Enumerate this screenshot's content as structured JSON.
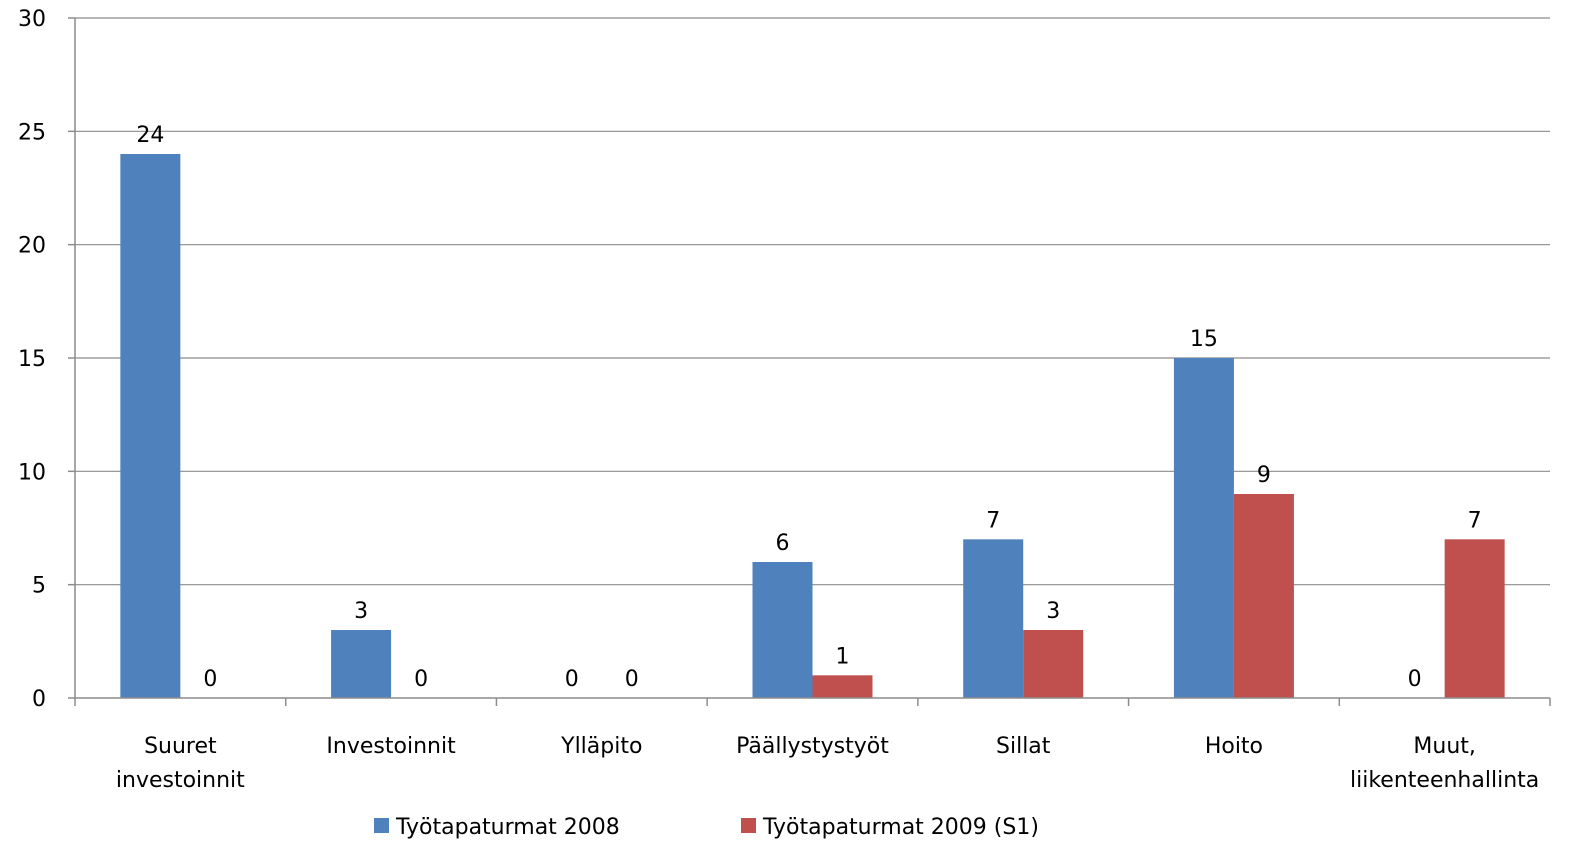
{
  "chart_data": {
    "type": "bar",
    "categories": [
      [
        "Suuret",
        "investoinnit"
      ],
      [
        "Investoinnit"
      ],
      [
        "Ylläpito"
      ],
      [
        "Päällystystyöt"
      ],
      [
        "Sillat"
      ],
      [
        "Hoito"
      ],
      [
        "Muut,",
        "liikenteenhallinta"
      ]
    ],
    "series": [
      {
        "name": "Työtapaturmat 2008",
        "color": "#4f81bd",
        "values": [
          24,
          3,
          0,
          6,
          7,
          15,
          0
        ]
      },
      {
        "name": "Työtapaturmat 2009 (S1)",
        "color": "#c0504d",
        "values": [
          0,
          0,
          0,
          1,
          3,
          9,
          7
        ]
      }
    ],
    "ylim": [
      0,
      30
    ],
    "yticks": [
      0,
      5,
      10,
      15,
      20,
      25,
      30
    ],
    "grid": true,
    "legend_position": "bottom",
    "title": "",
    "xlabel": "",
    "ylabel": ""
  }
}
